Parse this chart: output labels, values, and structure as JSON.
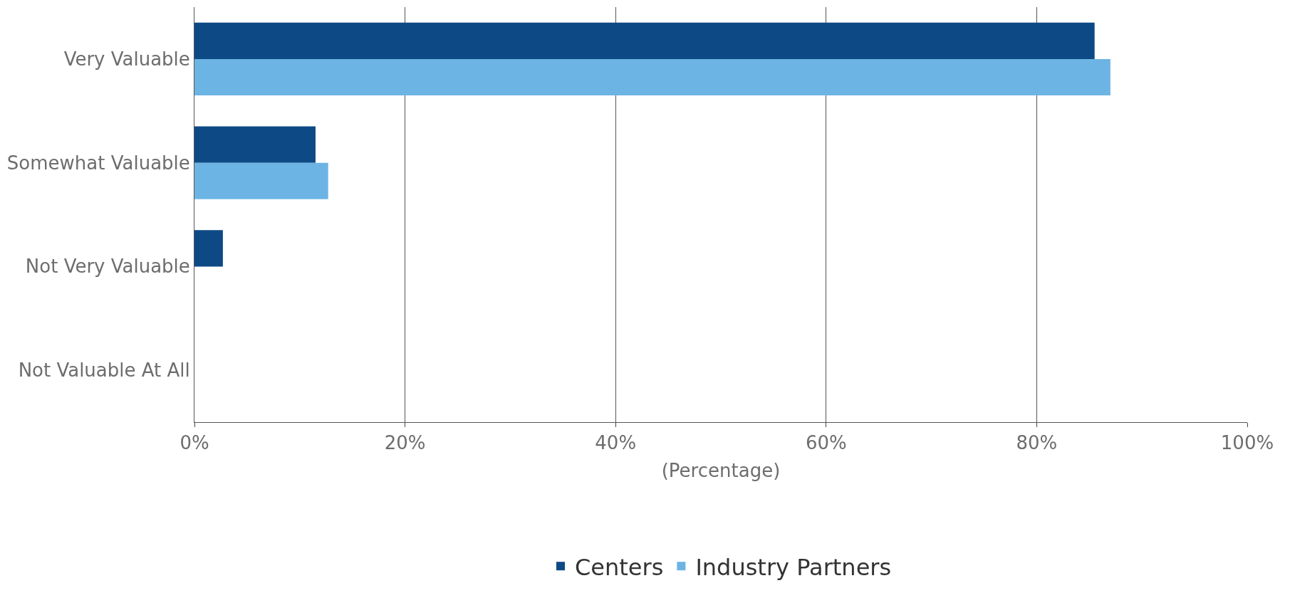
{
  "chart_data": {
    "type": "bar",
    "orientation": "horizontal",
    "xlabel": "(Percentage)",
    "categories": [
      "Very Valuable",
      "Somewhat Valuable",
      "Not Very Valuable",
      "Not Valuable At All"
    ],
    "series": [
      {
        "name": "Centers",
        "color": "#0d4a85",
        "values": [
          85.5,
          11.5,
          2.7,
          0
        ]
      },
      {
        "name": "Industry Partners",
        "color": "#6cb4e4",
        "values": [
          87,
          12.7,
          0,
          0
        ]
      }
    ],
    "xlim": [
      0,
      100
    ],
    "xticks": [
      {
        "value": 0,
        "label": "0%"
      },
      {
        "value": 20,
        "label": "20%"
      },
      {
        "value": 40,
        "label": "40%"
      },
      {
        "value": 60,
        "label": "60%"
      },
      {
        "value": 80,
        "label": "80%"
      },
      {
        "value": 100,
        "label": "100%"
      }
    ],
    "grid": "x",
    "legend": "bottom"
  }
}
